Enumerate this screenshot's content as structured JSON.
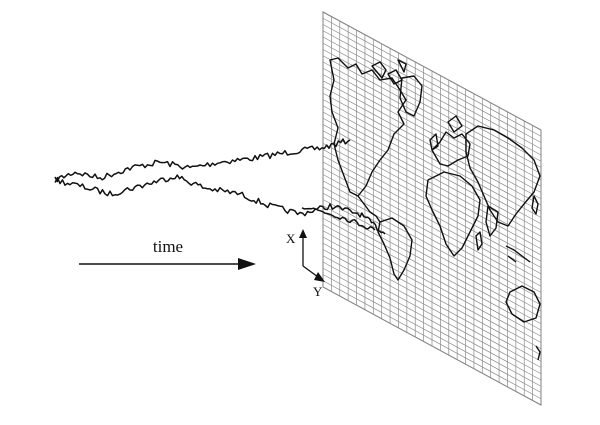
{
  "labels": {
    "time": "time",
    "x_axis": "X",
    "y_axis": "Y"
  },
  "colors": {
    "ink": "#111111",
    "grid": "#8a8a8a",
    "background": "#ffffff"
  },
  "grid": {
    "columns": 26,
    "rows": 44
  }
}
